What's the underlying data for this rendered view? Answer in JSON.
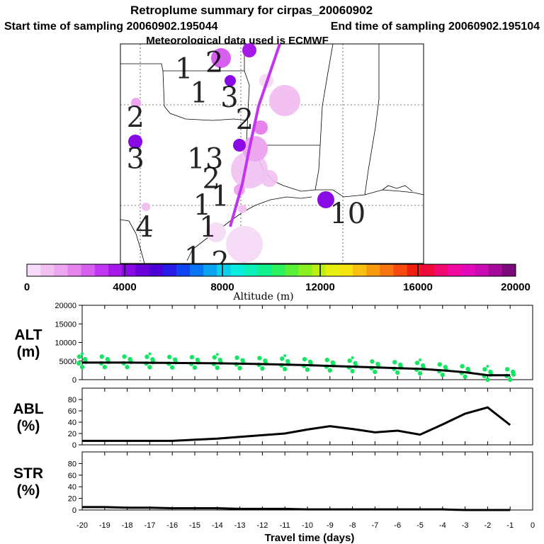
{
  "header": {
    "title": "Retroplume summary for cirpas_20060902",
    "start": "Start time of sampling 20060902.195044",
    "end": "End time of sampling 20060902.195104",
    "met": "Meteorological data used is ECMWF"
  },
  "map": {
    "markers": [
      {
        "label": "1",
        "lon": 0.18,
        "lat": 0.06
      },
      {
        "label": "2",
        "lon": 0.28,
        "lat": 0.03
      },
      {
        "label": "1",
        "lon": 0.23,
        "lat": 0.17
      },
      {
        "label": "3",
        "lon": 0.33,
        "lat": 0.19
      },
      {
        "label": "2",
        "lon": 0.38,
        "lat": 0.29
      },
      {
        "label": "2",
        "lon": 0.02,
        "lat": 0.28
      },
      {
        "label": "3",
        "lon": 0.02,
        "lat": 0.47
      },
      {
        "label": "1",
        "lon": 0.22,
        "lat": 0.47
      },
      {
        "label": "3",
        "lon": 0.28,
        "lat": 0.47
      },
      {
        "label": "2",
        "lon": 0.27,
        "lat": 0.56
      },
      {
        "label": "1",
        "lon": 0.3,
        "lat": 0.64
      },
      {
        "label": "1",
        "lon": 0.24,
        "lat": 0.68
      },
      {
        "label": "1",
        "lon": 0.26,
        "lat": 0.78
      },
      {
        "label": "4",
        "lon": 0.05,
        "lat": 0.78
      },
      {
        "label": "10",
        "lon": 0.69,
        "lat": 0.72
      },
      {
        "label": "1",
        "lon": 0.21,
        "lat": 0.92
      },
      {
        "label": "2",
        "lon": 0.3,
        "lat": 0.94
      }
    ]
  },
  "colorbar": {
    "ticks": [
      "0",
      "4000",
      "8000",
      "12000",
      "16000",
      "20000"
    ],
    "label": "Altitude (m)",
    "colors": [
      "#f7dcf7",
      "#f2c1f2",
      "#eda6f0",
      "#e484ec",
      "#d65ff0",
      "#c134f0",
      "#a51ae9",
      "#8a0ae6",
      "#6c00d8",
      "#4a00d6",
      "#2a1ae6",
      "#1044f2",
      "#0a74f4",
      "#0aa4f2",
      "#0ad0ee",
      "#0aeee0",
      "#0af0b8",
      "#10f08c",
      "#2cf060",
      "#5af03a",
      "#8af020",
      "#bcf014",
      "#e6f010",
      "#f6e410",
      "#f8c010",
      "#f89a10",
      "#f87410",
      "#f64a10",
      "#f01e10",
      "#f00a3a",
      "#f00a70",
      "#f00aa0",
      "#e20ab8",
      "#c80ab0",
      "#a40a98",
      "#7a0a7a"
    ]
  },
  "chart_data": [
    {
      "type": "line",
      "name": "ALT",
      "ylabel": "ALT\n(m)",
      "ylabel_line1": "ALT",
      "ylabel_line2": "(m)",
      "ylim": [
        0,
        20000
      ],
      "yticks": [
        "0",
        "5000",
        "10000",
        "15000",
        "20000"
      ],
      "x": [
        -20,
        -19,
        -18,
        -17,
        -16,
        -15,
        -14,
        -13,
        -12,
        -11,
        -10,
        -9,
        -8,
        -7,
        -6,
        -5,
        -4,
        -3,
        -2,
        -1
      ],
      "values": [
        4600,
        4600,
        4600,
        4550,
        4500,
        4450,
        4400,
        4300,
        4200,
        4050,
        3900,
        3700,
        3500,
        3300,
        3100,
        2900,
        2500,
        2000,
        1200,
        1200
      ],
      "scatter_color": "#14e664"
    },
    {
      "type": "line",
      "name": "ABL",
      "ylabel_line1": "ABL",
      "ylabel_line2": "(%)",
      "ylim": [
        0,
        100
      ],
      "yticks": [
        "0",
        "20",
        "40",
        "60",
        "80"
      ],
      "x": [
        -20,
        -19,
        -18,
        -17,
        -16,
        -15,
        -14,
        -13,
        -12,
        -11,
        -10,
        -9,
        -8,
        -7,
        -6,
        -5,
        -4,
        -3,
        -2,
        -1
      ],
      "values": [
        7,
        7,
        7,
        7,
        7,
        9,
        11,
        14,
        17,
        20,
        27,
        33,
        28,
        22,
        25,
        18,
        36,
        55,
        66,
        35
      ]
    },
    {
      "type": "line",
      "name": "STR",
      "ylabel_line1": "STR",
      "ylabel_line2": "(%)",
      "ylim": [
        0,
        100
      ],
      "yticks": [
        "0",
        "20",
        "40",
        "60",
        "80"
      ],
      "x": [
        -20,
        -19,
        -18,
        -17,
        -16,
        -15,
        -14,
        -13,
        -12,
        -11,
        -10,
        -9,
        -8,
        -7,
        -6,
        -5,
        -4,
        -3,
        -2,
        -1
      ],
      "values": [
        5,
        5,
        4,
        4,
        3,
        3,
        3,
        2,
        2,
        2,
        1,
        1,
        1,
        1,
        1,
        1,
        1,
        0,
        0,
        0
      ]
    }
  ],
  "xaxis": {
    "label": "Travel time (days)",
    "ticks": [
      "-20",
      "-19",
      "-18",
      "-17",
      "-16",
      "-15",
      "-14",
      "-13",
      "-12",
      "-11",
      "-10",
      "-9",
      "-8",
      "-7",
      "-6",
      "-5",
      "-4",
      "-3",
      "-2",
      "-1",
      "0"
    ]
  }
}
